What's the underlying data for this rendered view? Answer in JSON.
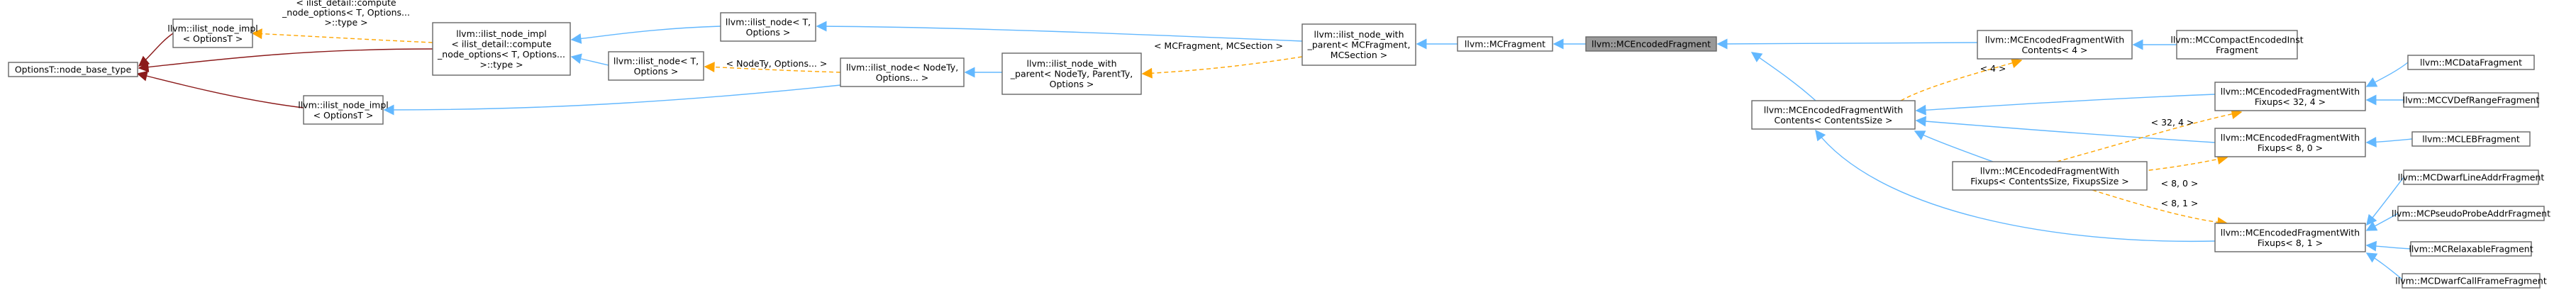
{
  "title": "",
  "nodes": [
    {
      "id": "optionsT_node_base_type",
      "lines": [
        "OptionsT::node_base_type"
      ]
    },
    {
      "id": "ilist_node_impl_optionsT_a",
      "lines": [
        "llvm::ilist_node_impl",
        "< OptionsT >"
      ]
    },
    {
      "id": "ilist_node_impl_compute",
      "lines": [
        "llvm::ilist_node_impl",
        "< ilist_detail::compute",
        "_node_options< T, Options...",
        ">::type >"
      ]
    },
    {
      "id": "ilist_node_impl_optionsT_b",
      "lines": [
        "llvm::ilist_node_impl",
        "< OptionsT >"
      ]
    },
    {
      "id": "ilist_node_T_options_top",
      "lines": [
        "llvm::ilist_node< T,",
        "Options >"
      ]
    },
    {
      "id": "ilist_node_T_options_mid",
      "lines": [
        "llvm::ilist_node< T,",
        "Options >"
      ]
    },
    {
      "id": "ilist_node_nodety_options",
      "lines": [
        "llvm::ilist_node< NodeTy,",
        "Options... >"
      ]
    },
    {
      "id": "ilist_node_with_parent_generic",
      "lines": [
        "llvm::ilist_node_with",
        "_parent< NodeTy, ParentTy,",
        "Options >"
      ]
    },
    {
      "id": "ilist_node_with_parent_mcfragment",
      "lines": [
        "llvm::ilist_node_with",
        "_parent< MCFragment,",
        "MCSection >"
      ]
    },
    {
      "id": "mcfragment",
      "lines": [
        "llvm::MCFragment"
      ]
    },
    {
      "id": "mcencodedfragment",
      "lines": [
        "llvm::MCEncodedFragment"
      ],
      "current": true
    },
    {
      "id": "mcencodedfragmentwithcontents_4",
      "lines": [
        "llvm::MCEncodedFragmentWith",
        "Contents< 4 >"
      ]
    },
    {
      "id": "mccompactencodedinstfragment",
      "lines": [
        "llvm::MCCompactEncodedInst",
        "Fragment"
      ]
    },
    {
      "id": "mcencodedfragmentwithcontents_generic",
      "lines": [
        "llvm::MCEncodedFragmentWith",
        "Contents< ContentsSize >"
      ]
    },
    {
      "id": "mcencodedfragmentwithfixups_32_4",
      "lines": [
        "llvm::MCEncodedFragmentWith",
        "Fixups< 32, 4 >"
      ]
    },
    {
      "id": "mcencodedfragmentwithfixups_8_0",
      "lines": [
        "llvm::MCEncodedFragmentWith",
        "Fixups< 8, 0 >"
      ]
    },
    {
      "id": "mcencodedfragmentwithfixups_generic",
      "lines": [
        "llvm::MCEncodedFragmentWith",
        "Fixups< ContentsSize, FixupsSize >"
      ]
    },
    {
      "id": "mcencodedfragmentwithfixups_8_1",
      "lines": [
        "llvm::MCEncodedFragmentWith",
        "Fixups< 8, 1 >"
      ]
    },
    {
      "id": "mcdatafragment",
      "lines": [
        "llvm::MCDataFragment"
      ]
    },
    {
      "id": "mccvdefrangefragment",
      "lines": [
        "llvm::MCCVDefRangeFragment"
      ]
    },
    {
      "id": "mclebfragment",
      "lines": [
        "llvm::MCLEBFragment"
      ]
    },
    {
      "id": "mcdwarflineaddrfragment",
      "lines": [
        "llvm::MCDwarfLineAddrFragment"
      ]
    },
    {
      "id": "mcpseudoprobeaddrfragment",
      "lines": [
        "llvm::MCPseudoProbeAddrFragment"
      ]
    },
    {
      "id": "mcrelaxablefragment",
      "lines": [
        "llvm::MCRelaxableFragment"
      ]
    },
    {
      "id": "mcdwarfcallframefragment",
      "lines": [
        "llvm::MCDwarfCallFrameFragment"
      ]
    }
  ],
  "edge_labels": {
    "compute_type": [
      "< ilist_detail::compute",
      "_node_options< T, Options...",
      ">::type >"
    ],
    "nodety_options": "< NodeTy, Options... >",
    "mcfragment_mcsection": "< MCFragment, MCSection >",
    "size_4": "< 4 >",
    "size_32_4": "< 32, 4 >",
    "size_8_0": "< 8, 0 >",
    "size_8_1": "< 8, 1 >"
  },
  "colors": {
    "inheritance_public": "#63b8ff",
    "inheritance_private": "#8b1a1a",
    "template_instance": "#ffa500",
    "node_border": "#666666",
    "current_fill": "#999999"
  }
}
